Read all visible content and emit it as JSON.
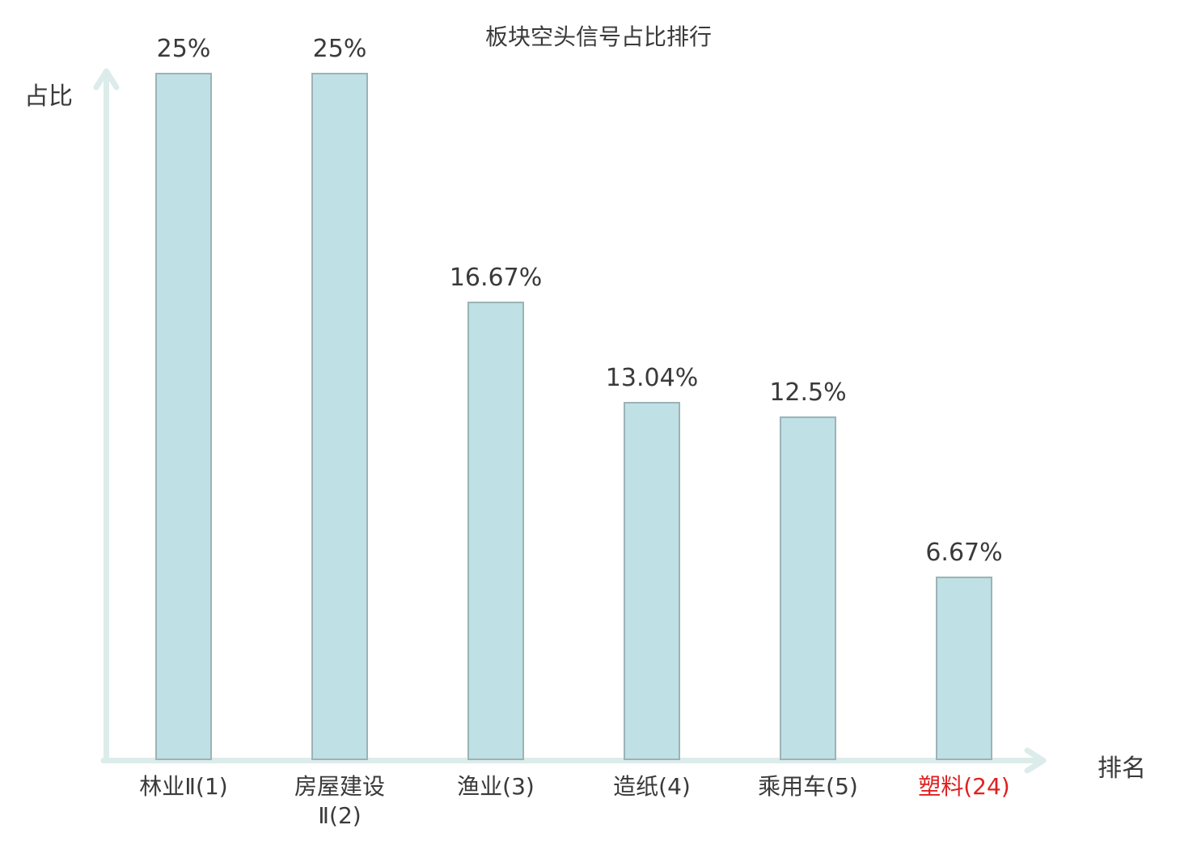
{
  "chart": {
    "title": "板块空头信号占比排行",
    "y_axis_label": "占比",
    "x_axis_label": "排名",
    "text_color": "#3a3a3a",
    "highlight_color": "#e02020",
    "bar_fill_color": "#bfe0e4",
    "bar_border_color": "#9bb3b6",
    "axis_color": "#dcecea"
  },
  "chart_data": {
    "type": "bar",
    "title": "板块空头信号占比排行",
    "xlabel": "排名",
    "ylabel": "占比",
    "categories": [
      "林业Ⅱ(1)",
      "房屋建设Ⅱ(2)",
      "渔业(3)",
      "造纸(4)",
      "乘用车(5)",
      "塑料(24)"
    ],
    "values": [
      25,
      25,
      16.67,
      13.04,
      12.5,
      6.67
    ],
    "value_labels": [
      "25%",
      "25%",
      "16.67%",
      "13.04%",
      "12.5%",
      "6.67%"
    ],
    "highlighted_category_index": 5,
    "ylim": [
      0,
      25
    ],
    "grid": false,
    "legend": null
  }
}
